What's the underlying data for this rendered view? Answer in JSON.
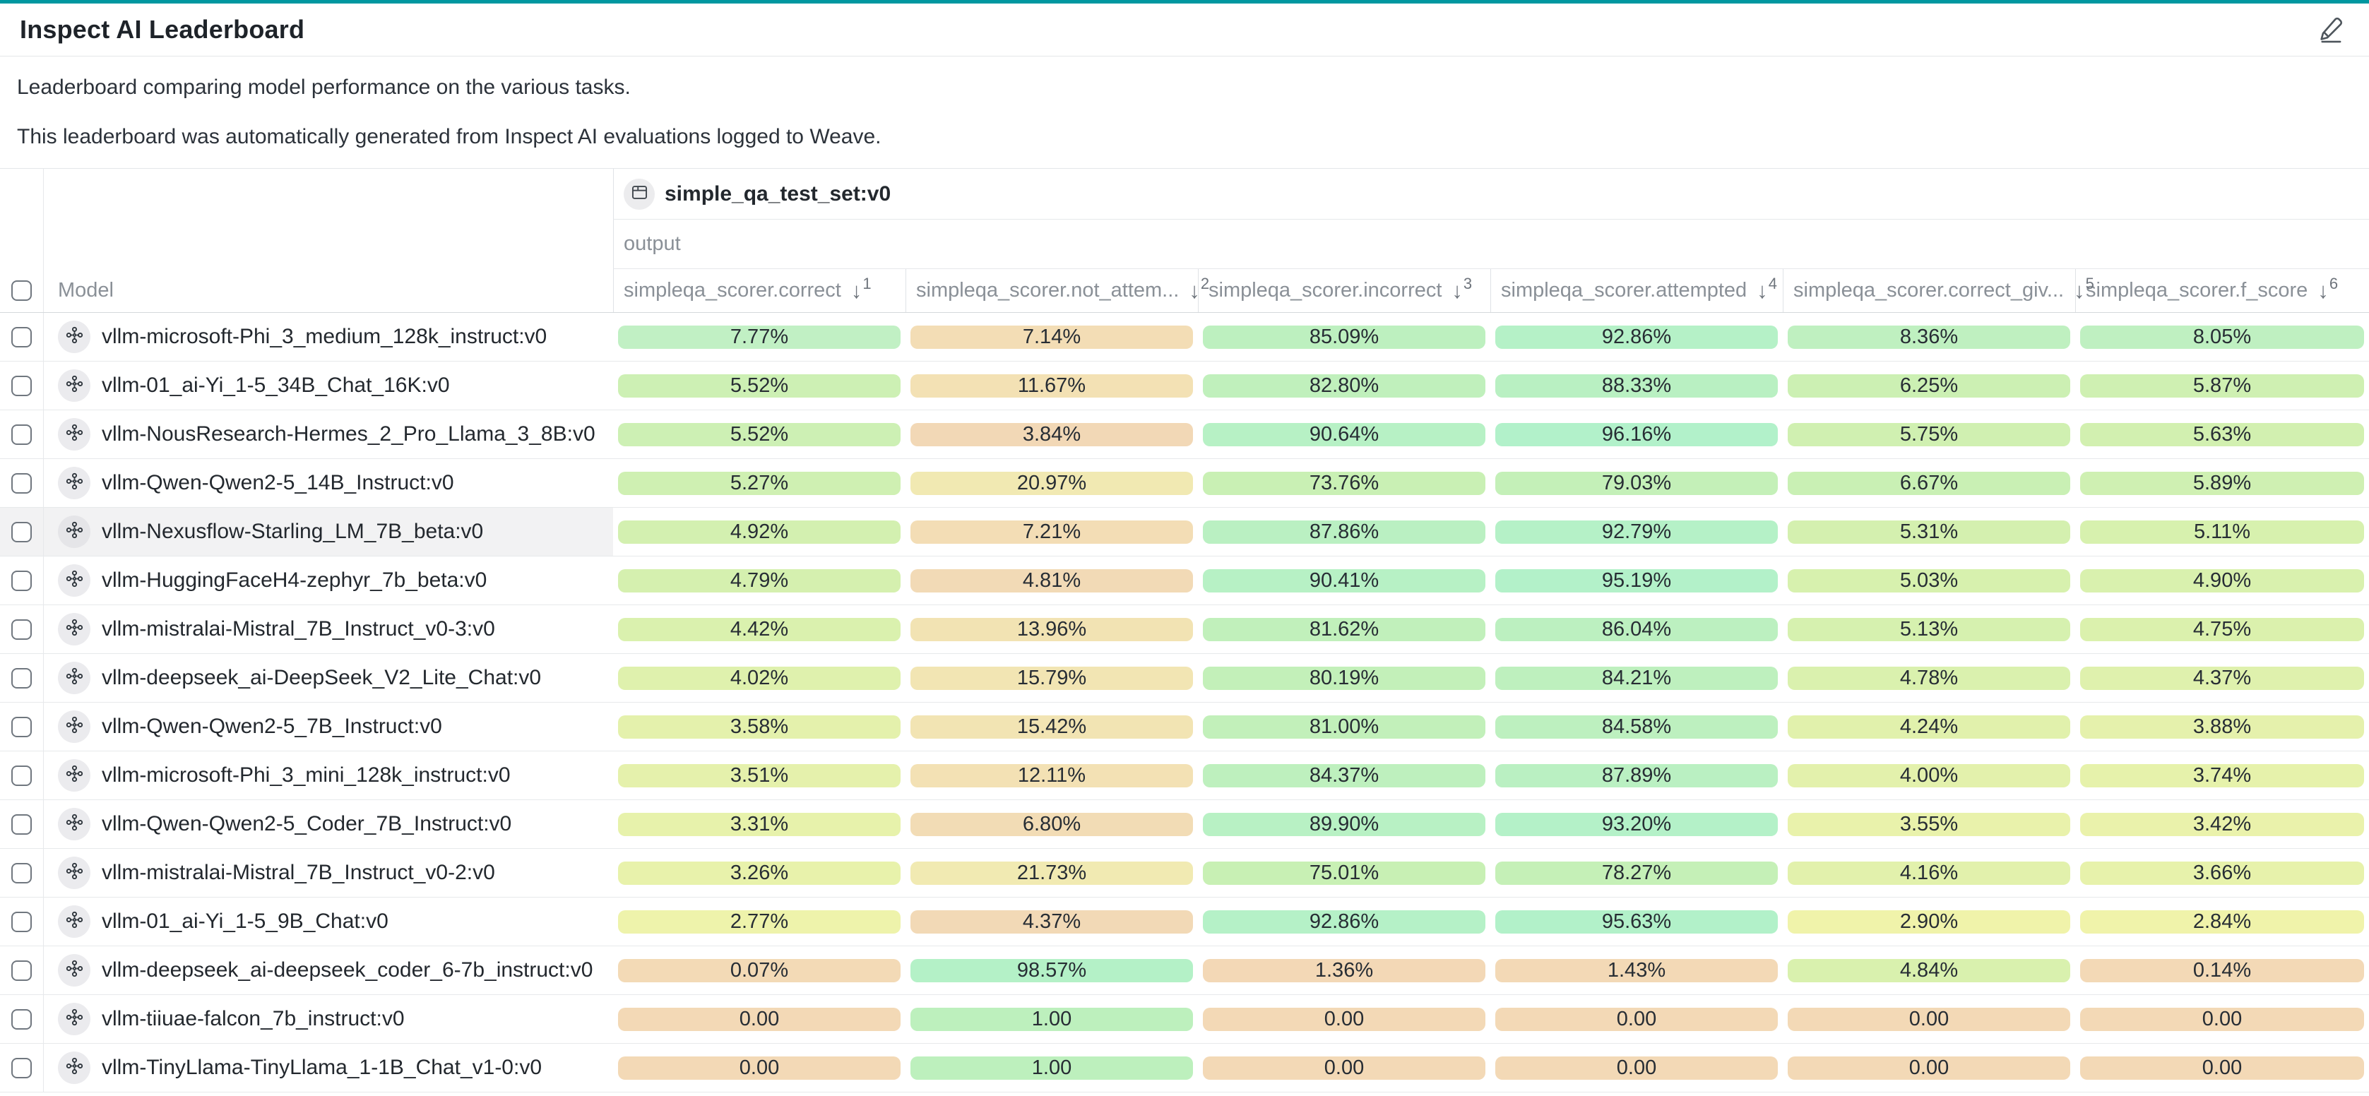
{
  "header": {
    "title": "Inspect AI Leaderboard"
  },
  "description": {
    "line1": "Leaderboard comparing model performance on the various tasks.",
    "line2": "This leaderboard was automatically generated from Inspect AI evaluations logged to Weave."
  },
  "table": {
    "dataset_header": {
      "icon": "table-icon",
      "label": "simple_qa_test_set:v0"
    },
    "output_label": "output",
    "model_column_label": "Model",
    "columns": [
      {
        "label": "simpleqa_scorer.correct",
        "sort_rank": "1",
        "sort_icon": "arrow-down-icon",
        "arrow": "↓"
      },
      {
        "label": "simpleqa_scorer.not_attem...",
        "sort_rank": "2",
        "sort_icon": "arrow-down-icon",
        "arrow": "↓"
      },
      {
        "label": "simpleqa_scorer.incorrect",
        "sort_rank": "3",
        "sort_icon": "arrow-down-icon",
        "arrow": "↓"
      },
      {
        "label": "simpleqa_scorer.attempted",
        "sort_rank": "4",
        "sort_icon": "arrow-down-icon",
        "arrow": "↓"
      },
      {
        "label": "simpleqa_scorer.correct_giv...",
        "sort_rank": "5",
        "sort_icon": "arrow-down-icon",
        "arrow": "↓"
      },
      {
        "label": "simpleqa_scorer.f_score",
        "sort_rank": "6",
        "sort_icon": "arrow-down-icon",
        "arrow": "↓"
      }
    ],
    "rows": [
      {
        "model": "vllm-microsoft-Phi_3_medium_128k_instruct:v0",
        "highlighted": false,
        "values": [
          "7.77%",
          "7.14%",
          "85.09%",
          "92.86%",
          "8.36%",
          "8.05%"
        ],
        "colors": [
          "#c1f0c4",
          "#f3ddb5",
          "#bdf0bf",
          "#b5f1c7",
          "#bff0c0",
          "#bff0c1"
        ]
      },
      {
        "model": "vllm-01_ai-Yi_1-5_34B_Chat_16K:v0",
        "highlighted": false,
        "values": [
          "5.52%",
          "11.67%",
          "82.80%",
          "88.33%",
          "6.25%",
          "5.87%"
        ],
        "colors": [
          "#cdf0b4",
          "#f3e1b4",
          "#c0f0bc",
          "#b9f0c2",
          "#ccf0b3",
          "#cff0b2"
        ]
      },
      {
        "model": "vllm-NousResearch-Hermes_2_Pro_Llama_3_8B:v0",
        "highlighted": false,
        "values": [
          "5.52%",
          "3.84%",
          "90.64%",
          "96.16%",
          "5.75%",
          "5.63%"
        ],
        "colors": [
          "#cdf0b4",
          "#f2d8b6",
          "#b7f1c5",
          "#b2f1ca",
          "#d0f0b1",
          "#d2f0b0"
        ]
      },
      {
        "model": "vllm-Qwen-Qwen2-5_14B_Instruct:v0",
        "highlighted": false,
        "values": [
          "5.27%",
          "20.97%",
          "73.76%",
          "79.03%",
          "6.67%",
          "5.89%"
        ],
        "colors": [
          "#cff0b2",
          "#f1e9b2",
          "#c9f0b4",
          "#c4f0b8",
          "#c9f0b4",
          "#cff0b2"
        ]
      },
      {
        "model": "vllm-Nexusflow-Starling_LM_7B_beta:v0",
        "highlighted": true,
        "values": [
          "4.92%",
          "7.21%",
          "87.86%",
          "92.79%",
          "5.31%",
          "5.11%"
        ],
        "colors": [
          "#d3f0b0",
          "#f3ddb5",
          "#baf0c2",
          "#b5f1c7",
          "#d4f0af",
          "#d7f1ae"
        ]
      },
      {
        "model": "vllm-HuggingFaceH4-zephyr_7b_beta:v0",
        "highlighted": false,
        "values": [
          "4.79%",
          "4.81%",
          "90.41%",
          "95.19%",
          "5.03%",
          "4.90%"
        ],
        "colors": [
          "#d5f0af",
          "#f2dab6",
          "#b7f1c5",
          "#b3f1c9",
          "#d7f1ae",
          "#d9f1ae"
        ]
      },
      {
        "model": "vllm-mistralai-Mistral_7B_Instruct_v0-3:v0",
        "highlighted": false,
        "values": [
          "4.42%",
          "13.96%",
          "81.62%",
          "86.04%",
          "5.13%",
          "4.75%"
        ],
        "colors": [
          "#daf1ae",
          "#f2e3b3",
          "#c1f0bb",
          "#bcf0c0",
          "#d6f1af",
          "#dbf1ad"
        ]
      },
      {
        "model": "vllm-deepseek_ai-DeepSeek_V2_Lite_Chat:v0",
        "highlighted": false,
        "values": [
          "4.02%",
          "15.79%",
          "80.19%",
          "84.21%",
          "4.78%",
          "4.37%"
        ],
        "colors": [
          "#dff1ad",
          "#f2e5b3",
          "#c3f0b9",
          "#bef0be",
          "#daf1ae",
          "#dff1ad"
        ]
      },
      {
        "model": "vllm-Qwen-Qwen2-5_7B_Instruct:v0",
        "highlighted": false,
        "values": [
          "3.58%",
          "15.42%",
          "81.00%",
          "84.58%",
          "4.24%",
          "3.88%"
        ],
        "colors": [
          "#e4f1ac",
          "#f2e4b3",
          "#c2f0ba",
          "#bdf0bf",
          "#e1f1ac",
          "#e5f1ac"
        ]
      },
      {
        "model": "vllm-microsoft-Phi_3_mini_128k_instruct:v0",
        "highlighted": false,
        "values": [
          "3.51%",
          "12.11%",
          "84.37%",
          "87.89%",
          "4.00%",
          "3.74%"
        ],
        "colors": [
          "#e5f1ac",
          "#f3e1b4",
          "#bef0be",
          "#baf0c2",
          "#e3f1ac",
          "#e6f2ab"
        ]
      },
      {
        "model": "vllm-Qwen-Qwen2-5_Coder_7B_Instruct:v0",
        "highlighted": false,
        "values": [
          "3.31%",
          "6.80%",
          "89.90%",
          "93.20%",
          "3.55%",
          "3.42%"
        ],
        "colors": [
          "#e7f2ab",
          "#f2dcb5",
          "#b8f1c4",
          "#b4f1c8",
          "#e9f2ab",
          "#eaf2ab"
        ]
      },
      {
        "model": "vllm-mistralai-Mistral_7B_Instruct_v0-2:v0",
        "highlighted": false,
        "values": [
          "3.26%",
          "21.73%",
          "75.01%",
          "78.27%",
          "4.16%",
          "3.66%"
        ],
        "colors": [
          "#e8f2ab",
          "#f1eab2",
          "#c8f0b4",
          "#c5f0b7",
          "#e2f1ac",
          "#e7f2ab"
        ]
      },
      {
        "model": "vllm-01_ai-Yi_1-5_9B_Chat:v0",
        "highlighted": false,
        "values": [
          "2.77%",
          "4.37%",
          "92.86%",
          "95.63%",
          "2.90%",
          "2.84%"
        ],
        "colors": [
          "#eef3ab",
          "#f2d9b6",
          "#b5f1c7",
          "#b2f1c9",
          "#f0f3aa",
          "#f0f3aa"
        ]
      },
      {
        "model": "vllm-deepseek_ai-deepseek_coder_6-7b_instruct:v0",
        "highlighted": false,
        "values": [
          "0.07%",
          "98.57%",
          "1.36%",
          "1.43%",
          "4.84%",
          "0.14%"
        ],
        "colors": [
          "#f3dab6",
          "#b4f1c7",
          "#f3d8b6",
          "#f3d9b6",
          "#d9f1ae",
          "#f3d9b6"
        ]
      },
      {
        "model": "vllm-tiiuae-falcon_7b_instruct:v0",
        "highlighted": false,
        "values": [
          "0.00",
          "1.00",
          "0.00",
          "0.00",
          "0.00",
          "0.00"
        ],
        "colors": [
          "#f3d9b6",
          "#bdf0bd",
          "#f3d9b6",
          "#f3d9b6",
          "#f3d9b6",
          "#f3d9b6"
        ]
      },
      {
        "model": "vllm-TinyLlama-TinyLlama_1-1B_Chat_v1-0:v0",
        "highlighted": false,
        "values": [
          "0.00",
          "1.00",
          "0.00",
          "0.00",
          "0.00",
          "0.00"
        ],
        "colors": [
          "#f3d9b6",
          "#bdf0bd",
          "#f3d9b6",
          "#f3d9b6",
          "#f3d9b6",
          "#f3d9b6"
        ]
      }
    ]
  },
  "colors": {
    "accent_teal": "#0097a0",
    "header_text": "#8a9097",
    "cell_text": "#272d34",
    "row_hover": "#f2f2f3"
  }
}
